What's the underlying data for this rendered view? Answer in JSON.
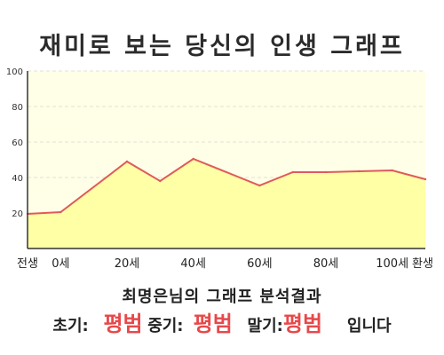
{
  "title": "재미로 보는 당신의 인생 그래프",
  "colors": {
    "plot_bg": "#ffffe8",
    "area_fill": "#ffffa6",
    "line": "#e05a5a",
    "grid": "#e0e0d0",
    "axis": "#333333",
    "highlight": "#e8484a"
  },
  "chart_data": {
    "type": "area",
    "x": [
      -10,
      0,
      20,
      30,
      40,
      60,
      70,
      80,
      90,
      100,
      110
    ],
    "values": [
      19.5,
      20.5,
      49,
      38,
      50.5,
      35.5,
      43,
      43,
      43.5,
      44,
      39
    ],
    "ylim": [
      0,
      100
    ],
    "xlim": [
      -10,
      110
    ],
    "yticks": [
      "20",
      "40",
      "60",
      "80",
      "100"
    ],
    "ytick_values": [
      20,
      40,
      60,
      80,
      100
    ],
    "xtick_labels": [
      {
        "x": -10,
        "label": "전생"
      },
      {
        "x": 0,
        "label": "0세"
      },
      {
        "x": 20,
        "label": "20세"
      },
      {
        "x": 40,
        "label": "40세"
      },
      {
        "x": 60,
        "label": "60세"
      },
      {
        "x": 80,
        "label": "80세"
      },
      {
        "x": 100,
        "label": "100세"
      },
      {
        "x": 110,
        "label": "환생"
      }
    ],
    "grid": true
  },
  "result": {
    "heading": "최명은님의 그래프 분석결과",
    "early_label": "초기:",
    "early_value": "평범",
    "middle_label": "중기:",
    "middle_value": "평범",
    "late_label": "말기:",
    "late_value": "평범",
    "suffix": "입니다"
  }
}
